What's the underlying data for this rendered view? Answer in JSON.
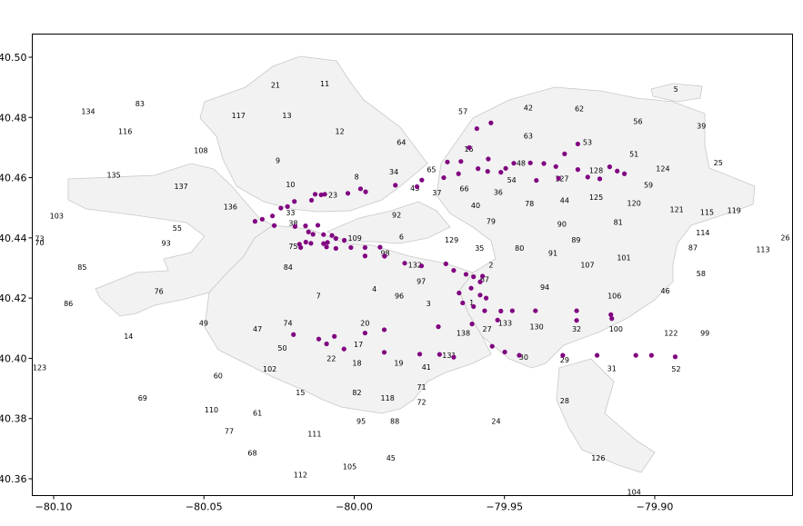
{
  "chart_data": {
    "type": "scatter",
    "title": "",
    "xlabel": "",
    "ylabel": "",
    "xlim": [
      -80.105,
      -79.865
    ],
    "ylim": [
      40.355,
      40.508
    ],
    "grid": false,
    "x_ticks": [
      {
        "value": -80.1,
        "label": "−80.10"
      },
      {
        "value": -80.05,
        "label": "−80.05"
      },
      {
        "value": -80.0,
        "label": "−80.00"
      },
      {
        "value": -79.95,
        "label": "−79.95"
      },
      {
        "value": -79.9,
        "label": "−79.90"
      }
    ],
    "y_ticks": [
      {
        "value": 40.36,
        "label": "40.36"
      },
      {
        "value": 40.38,
        "label": "40.38"
      },
      {
        "value": 40.4,
        "label": "40.40"
      },
      {
        "value": 40.42,
        "label": "40.42"
      },
      {
        "value": 40.44,
        "label": "40.44"
      },
      {
        "value": 40.46,
        "label": "40.46"
      },
      {
        "value": 40.48,
        "label": "40.48"
      },
      {
        "value": 40.5,
        "label": "40.50"
      }
    ],
    "point_color": "#800080",
    "region_fill": "#f2f2f2",
    "region_stroke": "#c8c8c8",
    "neighborhood_labels": [
      {
        "label": "5",
        "x": -79.893,
        "y": 40.4895
      },
      {
        "label": "11",
        "x": -80.0098,
        "y": 40.4913
      },
      {
        "label": "21",
        "x": -80.0262,
        "y": 40.4908
      },
      {
        "label": "83",
        "x": -80.0713,
        "y": 40.4846
      },
      {
        "label": "134",
        "x": -80.0885,
        "y": 40.482
      },
      {
        "label": "117",
        "x": -80.0385,
        "y": 40.4807
      },
      {
        "label": "13",
        "x": -80.0224,
        "y": 40.4807
      },
      {
        "label": "42",
        "x": -79.9421,
        "y": 40.4833
      },
      {
        "label": "62",
        "x": -79.9251,
        "y": 40.4829
      },
      {
        "label": "57",
        "x": -79.9638,
        "y": 40.482
      },
      {
        "label": "56",
        "x": -79.9056,
        "y": 40.4787
      },
      {
        "label": "39",
        "x": -79.8845,
        "y": 40.4772
      },
      {
        "label": "116",
        "x": -80.0762,
        "y": 40.4754
      },
      {
        "label": "12",
        "x": -80.0048,
        "y": 40.4754
      },
      {
        "label": "63",
        "x": -79.9421,
        "y": 40.4739
      },
      {
        "label": "64",
        "x": -79.9843,
        "y": 40.4718
      },
      {
        "label": "53",
        "x": -79.9224,
        "y": 40.4718
      },
      {
        "label": "16",
        "x": -79.9619,
        "y": 40.4695
      },
      {
        "label": "108",
        "x": -80.051,
        "y": 40.4691
      },
      {
        "label": "51",
        "x": -79.9069,
        "y": 40.4678
      },
      {
        "label": "9",
        "x": -80.0254,
        "y": 40.4658
      },
      {
        "label": "48",
        "x": -79.9445,
        "y": 40.4649
      },
      {
        "label": "124",
        "x": -79.8973,
        "y": 40.463
      },
      {
        "label": "25",
        "x": -79.8789,
        "y": 40.465
      },
      {
        "label": "65",
        "x": -79.9743,
        "y": 40.4628
      },
      {
        "label": "34",
        "x": -79.9868,
        "y": 40.462
      },
      {
        "label": "128",
        "x": -79.9195,
        "y": 40.4624
      },
      {
        "label": "8",
        "x": -79.9992,
        "y": 40.4603
      },
      {
        "label": "54",
        "x": -79.9476,
        "y": 40.4593
      },
      {
        "label": "127",
        "x": -79.9309,
        "y": 40.4597
      },
      {
        "label": "135",
        "x": -80.08,
        "y": 40.4609
      },
      {
        "label": "59",
        "x": -79.9021,
        "y": 40.4576
      },
      {
        "label": "10",
        "x": -80.0212,
        "y": 40.4577
      },
      {
        "label": "137",
        "x": -80.0576,
        "y": 40.4571
      },
      {
        "label": "66",
        "x": -79.9634,
        "y": 40.4564
      },
      {
        "label": "43",
        "x": -79.9798,
        "y": 40.4565
      },
      {
        "label": "36",
        "x": -79.9521,
        "y": 40.4552
      },
      {
        "label": "23",
        "x": -80.0071,
        "y": 40.4543
      },
      {
        "label": "37",
        "x": -79.9725,
        "y": 40.455
      },
      {
        "label": "125",
        "x": -79.9195,
        "y": 40.4536
      },
      {
        "label": "78",
        "x": -79.9417,
        "y": 40.4514
      },
      {
        "label": "44",
        "x": -79.93,
        "y": 40.4525
      },
      {
        "label": "120",
        "x": -79.9069,
        "y": 40.4515
      },
      {
        "label": "136",
        "x": -80.0412,
        "y": 40.4504
      },
      {
        "label": "40",
        "x": -79.9596,
        "y": 40.4508
      },
      {
        "label": "121",
        "x": -79.8927,
        "y": 40.4494
      },
      {
        "label": "115",
        "x": -79.8826,
        "y": 40.4486
      },
      {
        "label": "119",
        "x": -79.8736,
        "y": 40.4492
      },
      {
        "label": "33",
        "x": -80.0212,
        "y": 40.4484
      },
      {
        "label": "92",
        "x": -79.9859,
        "y": 40.4476
      },
      {
        "label": "79",
        "x": -79.9545,
        "y": 40.4455
      },
      {
        "label": "81",
        "x": -79.9122,
        "y": 40.4453
      },
      {
        "label": "90",
        "x": -79.9309,
        "y": 40.4446
      },
      {
        "label": "103",
        "x": -80.099,
        "y": 40.4474
      },
      {
        "label": "38",
        "x": -80.0203,
        "y": 40.4449
      },
      {
        "label": "55",
        "x": -80.0589,
        "y": 40.4433
      },
      {
        "label": "114",
        "x": -79.884,
        "y": 40.4418
      },
      {
        "label": "26",
        "x": -79.8482,
        "y": 40.4401
      },
      {
        "label": "73",
        "x": -80.1157,
        "y": 40.4398
      },
      {
        "label": "109",
        "x": -79.9998,
        "y": 40.44
      },
      {
        "label": "6",
        "x": -79.9843,
        "y": 40.4404
      },
      {
        "label": "129",
        "x": -79.9676,
        "y": 40.4393
      },
      {
        "label": "89",
        "x": -79.9262,
        "y": 40.4393
      },
      {
        "label": "93",
        "x": -80.0626,
        "y": 40.4383
      },
      {
        "label": "70",
        "x": -80.1372,
        "y": 40.4385
      },
      {
        "label": "87",
        "x": -79.8873,
        "y": 40.4368
      },
      {
        "label": "113",
        "x": -79.864,
        "y": 40.4362
      },
      {
        "label": "75",
        "x": -80.0203,
        "y": 40.4372
      },
      {
        "label": "35",
        "x": -79.9583,
        "y": 40.4366
      },
      {
        "label": "80",
        "x": -79.945,
        "y": 40.4366
      },
      {
        "label": "98",
        "x": -79.9897,
        "y": 40.435
      },
      {
        "label": "91",
        "x": -79.9339,
        "y": 40.435
      },
      {
        "label": "101",
        "x": -79.9103,
        "y": 40.4334
      },
      {
        "label": "132",
        "x": -79.9798,
        "y": 40.431
      },
      {
        "label": "2",
        "x": -79.9545,
        "y": 40.431
      },
      {
        "label": "84",
        "x": -80.022,
        "y": 40.4303
      },
      {
        "label": "85",
        "x": -80.0905,
        "y": 40.4303
      },
      {
        "label": "107",
        "x": -79.9224,
        "y": 40.431
      },
      {
        "label": "58",
        "x": -79.8846,
        "y": 40.4282
      },
      {
        "label": "97",
        "x": -79.9777,
        "y": 40.4257
      },
      {
        "label": "67",
        "x": -79.9566,
        "y": 40.4263
      },
      {
        "label": "94",
        "x": -79.9366,
        "y": 40.4237
      },
      {
        "label": "46",
        "x": -79.8965,
        "y": 40.4224
      },
      {
        "label": "4",
        "x": -79.9933,
        "y": 40.423
      },
      {
        "label": "76",
        "x": -80.065,
        "y": 40.4223
      },
      {
        "label": "96",
        "x": -79.985,
        "y": 40.4208
      },
      {
        "label": "106",
        "x": -79.9134,
        "y": 40.4208
      },
      {
        "label": "86",
        "x": -80.0951,
        "y": 40.4182
      },
      {
        "label": "3",
        "x": -79.9753,
        "y": 40.4182
      },
      {
        "label": "1",
        "x": -79.9609,
        "y": 40.4186
      },
      {
        "label": "7",
        "x": -80.0119,
        "y": 40.4208
      },
      {
        "label": "133",
        "x": -79.9498,
        "y": 40.4117
      },
      {
        "label": "20",
        "x": -79.9964,
        "y": 40.4117
      },
      {
        "label": "74",
        "x": -80.0221,
        "y": 40.4117
      },
      {
        "label": "49",
        "x": -80.0501,
        "y": 40.4117
      },
      {
        "label": "130",
        "x": -79.9393,
        "y": 40.4105
      },
      {
        "label": "32",
        "x": -79.926,
        "y": 40.4098
      },
      {
        "label": "100",
        "x": -79.9129,
        "y": 40.4098
      },
      {
        "label": "27",
        "x": -79.9558,
        "y": 40.4098
      },
      {
        "label": "47",
        "x": -80.0322,
        "y": 40.4098
      },
      {
        "label": "99",
        "x": -79.8833,
        "y": 40.4085
      },
      {
        "label": "122",
        "x": -79.8946,
        "y": 40.4085
      },
      {
        "label": "138",
        "x": -79.9637,
        "y": 40.4085
      },
      {
        "label": "14",
        "x": -80.0751,
        "y": 40.4073
      },
      {
        "label": "17",
        "x": -79.9986,
        "y": 40.4046
      },
      {
        "label": "50",
        "x": -80.0239,
        "y": 40.4034
      },
      {
        "label": "131",
        "x": -79.9684,
        "y": 40.401
      },
      {
        "label": "30",
        "x": -79.9436,
        "y": 40.4005
      },
      {
        "label": "22",
        "x": -80.0076,
        "y": 40.4
      },
      {
        "label": "18",
        "x": -79.9991,
        "y": 40.3984
      },
      {
        "label": "29",
        "x": -79.93,
        "y": 40.3996
      },
      {
        "label": "19",
        "x": -79.9852,
        "y": 40.3984
      },
      {
        "label": "31",
        "x": -79.9143,
        "y": 40.3967
      },
      {
        "label": "123",
        "x": -80.1208,
        "y": 40.397
      },
      {
        "label": "41",
        "x": -79.976,
        "y": 40.3971
      },
      {
        "label": "52",
        "x": -79.8929,
        "y": 40.3965
      },
      {
        "label": "102",
        "x": -80.0281,
        "y": 40.3965
      },
      {
        "label": "60",
        "x": -80.0453,
        "y": 40.3942
      },
      {
        "label": "71",
        "x": -79.9776,
        "y": 40.3904
      },
      {
        "label": "82",
        "x": -79.9991,
        "y": 40.3886
      },
      {
        "label": "15",
        "x": -80.0179,
        "y": 40.3886
      },
      {
        "label": "118",
        "x": -79.9889,
        "y": 40.3869
      },
      {
        "label": "72",
        "x": -79.9776,
        "y": 40.3855
      },
      {
        "label": "28",
        "x": -79.93,
        "y": 40.3859
      },
      {
        "label": "69",
        "x": -80.0704,
        "y": 40.3869
      },
      {
        "label": "110",
        "x": -80.0475,
        "y": 40.3829
      },
      {
        "label": "61",
        "x": -80.0322,
        "y": 40.3819
      },
      {
        "label": "24",
        "x": -79.9528,
        "y": 40.3791
      },
      {
        "label": "95",
        "x": -79.9977,
        "y": 40.3791
      },
      {
        "label": "88",
        "x": -79.9865,
        "y": 40.3791
      },
      {
        "label": "77",
        "x": -80.0416,
        "y": 40.3759
      },
      {
        "label": "111",
        "x": -80.0132,
        "y": 40.3749
      },
      {
        "label": "68",
        "x": -80.0339,
        "y": 40.3686
      },
      {
        "label": "45",
        "x": -79.9878,
        "y": 40.367
      },
      {
        "label": "126",
        "x": -79.9188,
        "y": 40.367
      },
      {
        "label": "105",
        "x": -80.0015,
        "y": 40.364
      },
      {
        "label": "112",
        "x": -80.0179,
        "y": 40.3614
      },
      {
        "label": "104",
        "x": -79.9069,
        "y": 40.3544
      }
    ],
    "points": [
      {
        "x": -79.9545,
        "y": 40.4782
      },
      {
        "x": -79.9592,
        "y": 40.4763
      },
      {
        "x": -79.9617,
        "y": 40.47
      },
      {
        "x": -79.9256,
        "y": 40.4712
      },
      {
        "x": -79.93,
        "y": 40.4679
      },
      {
        "x": -79.969,
        "y": 40.4652
      },
      {
        "x": -79.9645,
        "y": 40.4654
      },
      {
        "x": -79.9554,
        "y": 40.4662
      },
      {
        "x": -79.9496,
        "y": 40.4631
      },
      {
        "x": -79.9469,
        "y": 40.4648
      },
      {
        "x": -79.9414,
        "y": 40.4649
      },
      {
        "x": -79.9369,
        "y": 40.4647
      },
      {
        "x": -79.9329,
        "y": 40.4637
      },
      {
        "x": -79.9256,
        "y": 40.4627
      },
      {
        "x": -79.915,
        "y": 40.4636
      },
      {
        "x": -79.9125,
        "y": 40.4622
      },
      {
        "x": -79.9101,
        "y": 40.4613
      },
      {
        "x": -79.9223,
        "y": 40.4602
      },
      {
        "x": -79.9183,
        "y": 40.4596
      },
      {
        "x": -79.932,
        "y": 40.4598
      },
      {
        "x": -79.9394,
        "y": 40.4591
      },
      {
        "x": -79.9512,
        "y": 40.4618
      },
      {
        "x": -79.9556,
        "y": 40.4621
      },
      {
        "x": -79.9588,
        "y": 40.463
      },
      {
        "x": -79.9653,
        "y": 40.4613
      },
      {
        "x": -79.9702,
        "y": 40.46
      },
      {
        "x": -79.9775,
        "y": 40.4592
      },
      {
        "x": -79.9791,
        "y": 40.457
      },
      {
        "x": -79.9863,
        "y": 40.4575
      },
      {
        "x": -79.9979,
        "y": 40.4563
      },
      {
        "x": -79.9962,
        "y": 40.4553
      },
      {
        "x": -80.0021,
        "y": 40.4548
      },
      {
        "x": -80.0098,
        "y": 40.4545
      },
      {
        "x": -80.011,
        "y": 40.4543
      },
      {
        "x": -80.013,
        "y": 40.4545
      },
      {
        "x": -80.0142,
        "y": 40.4525
      },
      {
        "x": -80.0199,
        "y": 40.4521
      },
      {
        "x": -80.0222,
        "y": 40.4504
      },
      {
        "x": -80.0244,
        "y": 40.4499
      },
      {
        "x": -80.0272,
        "y": 40.4473
      },
      {
        "x": -80.0306,
        "y": 40.4462
      },
      {
        "x": -80.033,
        "y": 40.4455
      },
      {
        "x": -80.0266,
        "y": 40.4441
      },
      {
        "x": -80.0197,
        "y": 40.4438
      },
      {
        "x": -80.0162,
        "y": 40.444
      },
      {
        "x": -80.0121,
        "y": 40.4442
      },
      {
        "x": -80.0152,
        "y": 40.442
      },
      {
        "x": -80.0137,
        "y": 40.4412
      },
      {
        "x": -80.0102,
        "y": 40.4411
      },
      {
        "x": -80.0074,
        "y": 40.4408
      },
      {
        "x": -80.0061,
        "y": 40.4398
      },
      {
        "x": -80.0033,
        "y": 40.4392
      },
      {
        "x": -80.0089,
        "y": 40.4385
      },
      {
        "x": -80.0102,
        "y": 40.4381
      },
      {
        "x": -80.0144,
        "y": 40.4382
      },
      {
        "x": -80.0161,
        "y": 40.4386
      },
      {
        "x": -80.0182,
        "y": 40.4379
      },
      {
        "x": -80.0178,
        "y": 40.4368
      },
      {
        "x": -80.0092,
        "y": 40.437
      },
      {
        "x": -80.0061,
        "y": 40.4365
      },
      {
        "x": -80.0011,
        "y": 40.4368
      },
      {
        "x": -79.9964,
        "y": 40.4368
      },
      {
        "x": -79.9914,
        "y": 40.4369
      },
      {
        "x": -79.9964,
        "y": 40.434
      },
      {
        "x": -79.9899,
        "y": 40.4339
      },
      {
        "x": -79.9832,
        "y": 40.4316
      },
      {
        "x": -79.9776,
        "y": 40.4307
      },
      {
        "x": -79.9695,
        "y": 40.4314
      },
      {
        "x": -79.9669,
        "y": 40.4292
      },
      {
        "x": -79.9628,
        "y": 40.4279
      },
      {
        "x": -79.9603,
        "y": 40.4271
      },
      {
        "x": -79.9573,
        "y": 40.4273
      },
      {
        "x": -79.9581,
        "y": 40.4254
      },
      {
        "x": -79.9611,
        "y": 40.4233
      },
      {
        "x": -79.9651,
        "y": 40.4217
      },
      {
        "x": -79.9581,
        "y": 40.421
      },
      {
        "x": -79.9561,
        "y": 40.42
      },
      {
        "x": -79.9639,
        "y": 40.4184
      },
      {
        "x": -79.9603,
        "y": 40.4172
      },
      {
        "x": -79.9566,
        "y": 40.4158
      },
      {
        "x": -79.9512,
        "y": 40.4157
      },
      {
        "x": -79.9474,
        "y": 40.4158
      },
      {
        "x": -79.9397,
        "y": 40.4158
      },
      {
        "x": -79.926,
        "y": 40.4158
      },
      {
        "x": -79.9146,
        "y": 40.4145
      },
      {
        "x": -79.926,
        "y": 40.4126
      },
      {
        "x": -79.9143,
        "y": 40.4132
      },
      {
        "x": -79.9523,
        "y": 40.4127
      },
      {
        "x": -79.9608,
        "y": 40.4114
      },
      {
        "x": -79.972,
        "y": 40.4105
      },
      {
        "x": -79.99,
        "y": 40.4095
      },
      {
        "x": -79.9964,
        "y": 40.4084
      },
      {
        "x": -80.0066,
        "y": 40.4073
      },
      {
        "x": -80.0202,
        "y": 40.4079
      },
      {
        "x": -80.0118,
        "y": 40.4064
      },
      {
        "x": -80.0092,
        "y": 40.4048
      },
      {
        "x": -80.0034,
        "y": 40.4031
      },
      {
        "x": -79.99,
        "y": 40.402
      },
      {
        "x": -79.9782,
        "y": 40.4014
      },
      {
        "x": -79.9716,
        "y": 40.4013
      },
      {
        "x": -79.9669,
        "y": 40.4004
      },
      {
        "x": -79.9541,
        "y": 40.404
      },
      {
        "x": -79.9499,
        "y": 40.4021
      },
      {
        "x": -79.9451,
        "y": 40.401
      },
      {
        "x": -79.9306,
        "y": 40.401
      },
      {
        "x": -79.9192,
        "y": 40.401
      },
      {
        "x": -79.9063,
        "y": 40.401
      },
      {
        "x": -79.9011,
        "y": 40.401
      },
      {
        "x": -79.8932,
        "y": 40.4005
      }
    ]
  }
}
